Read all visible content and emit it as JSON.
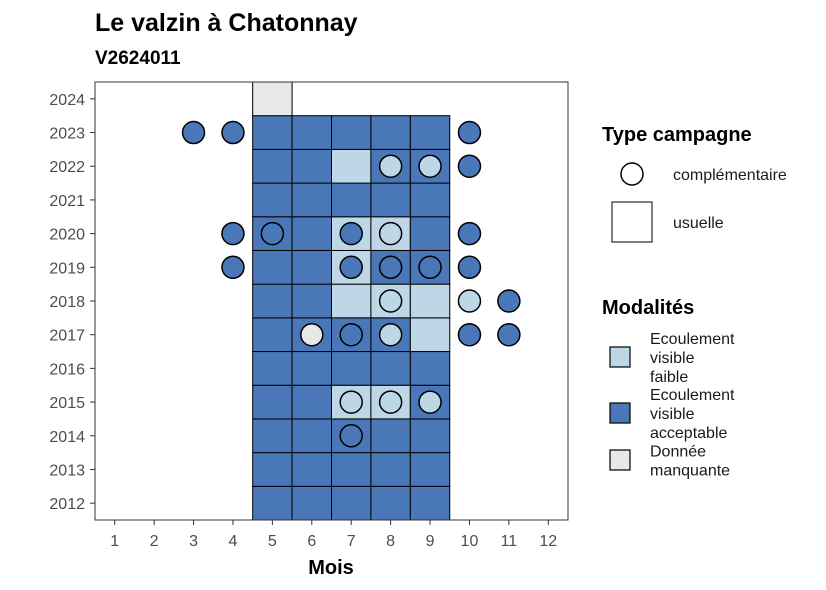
{
  "chart_data": {
    "type": "heatmap",
    "title": "Le valzin à Chatonnay",
    "subtitle": "V2624011",
    "xlabel": "Mois",
    "ylabel": "",
    "x_ticks": [
      1,
      2,
      3,
      4,
      5,
      6,
      7,
      8,
      9,
      10,
      11,
      12
    ],
    "y_ticks": [
      2012,
      2013,
      2014,
      2015,
      2016,
      2017,
      2018,
      2019,
      2020,
      2021,
      2022,
      2023,
      2024
    ],
    "xlim": [
      0.5,
      12.5
    ],
    "ylim": [
      2011.5,
      2024.5
    ],
    "grid": false,
    "legend_position": "right",
    "colors": {
      "faible": "#bdd7e7",
      "acceptable": "#4a77b8",
      "manquante": "#e8e8e8",
      "outline": "#000000"
    },
    "legend": {
      "shape_title": "Type campagne",
      "shape_items": [
        {
          "shape": "circle",
          "label": "complémentaire"
        },
        {
          "shape": "square",
          "label": "usuelle"
        }
      ],
      "fill_title": "Modalités",
      "fill_items": [
        {
          "key": "faible",
          "lines": [
            "Ecoulement",
            "visible",
            "faible"
          ]
        },
        {
          "key": "acceptable",
          "lines": [
            "Ecoulement",
            "visible",
            "acceptable"
          ]
        },
        {
          "key": "manquante",
          "lines": [
            "Donnée",
            "manquante"
          ]
        }
      ]
    },
    "usuelle": [
      {
        "year": 2012,
        "month": 5,
        "m": "acceptable"
      },
      {
        "year": 2012,
        "month": 6,
        "m": "acceptable"
      },
      {
        "year": 2012,
        "month": 7,
        "m": "acceptable"
      },
      {
        "year": 2012,
        "month": 8,
        "m": "acceptable"
      },
      {
        "year": 2012,
        "month": 9,
        "m": "acceptable"
      },
      {
        "year": 2013,
        "month": 5,
        "m": "acceptable"
      },
      {
        "year": 2013,
        "month": 6,
        "m": "acceptable"
      },
      {
        "year": 2013,
        "month": 7,
        "m": "acceptable"
      },
      {
        "year": 2013,
        "month": 8,
        "m": "acceptable"
      },
      {
        "year": 2013,
        "month": 9,
        "m": "acceptable"
      },
      {
        "year": 2014,
        "month": 5,
        "m": "acceptable"
      },
      {
        "year": 2014,
        "month": 6,
        "m": "acceptable"
      },
      {
        "year": 2014,
        "month": 7,
        "m": "acceptable"
      },
      {
        "year": 2014,
        "month": 8,
        "m": "acceptable"
      },
      {
        "year": 2014,
        "month": 9,
        "m": "acceptable"
      },
      {
        "year": 2015,
        "month": 5,
        "m": "acceptable"
      },
      {
        "year": 2015,
        "month": 6,
        "m": "acceptable"
      },
      {
        "year": 2015,
        "month": 7,
        "m": "faible"
      },
      {
        "year": 2015,
        "month": 8,
        "m": "faible"
      },
      {
        "year": 2015,
        "month": 9,
        "m": "acceptable"
      },
      {
        "year": 2016,
        "month": 5,
        "m": "acceptable"
      },
      {
        "year": 2016,
        "month": 6,
        "m": "acceptable"
      },
      {
        "year": 2016,
        "month": 7,
        "m": "acceptable"
      },
      {
        "year": 2016,
        "month": 8,
        "m": "acceptable"
      },
      {
        "year": 2016,
        "month": 9,
        "m": "acceptable"
      },
      {
        "year": 2017,
        "month": 5,
        "m": "acceptable"
      },
      {
        "year": 2017,
        "month": 6,
        "m": "acceptable"
      },
      {
        "year": 2017,
        "month": 7,
        "m": "acceptable"
      },
      {
        "year": 2017,
        "month": 8,
        "m": "acceptable"
      },
      {
        "year": 2017,
        "month": 9,
        "m": "faible"
      },
      {
        "year": 2018,
        "month": 5,
        "m": "acceptable"
      },
      {
        "year": 2018,
        "month": 6,
        "m": "acceptable"
      },
      {
        "year": 2018,
        "month": 7,
        "m": "faible"
      },
      {
        "year": 2018,
        "month": 8,
        "m": "faible"
      },
      {
        "year": 2018,
        "month": 9,
        "m": "faible"
      },
      {
        "year": 2019,
        "month": 5,
        "m": "acceptable"
      },
      {
        "year": 2019,
        "month": 6,
        "m": "acceptable"
      },
      {
        "year": 2019,
        "month": 7,
        "m": "faible"
      },
      {
        "year": 2019,
        "month": 8,
        "m": "acceptable"
      },
      {
        "year": 2019,
        "month": 9,
        "m": "acceptable"
      },
      {
        "year": 2020,
        "month": 5,
        "m": "acceptable"
      },
      {
        "year": 2020,
        "month": 6,
        "m": "acceptable"
      },
      {
        "year": 2020,
        "month": 7,
        "m": "faible"
      },
      {
        "year": 2020,
        "month": 8,
        "m": "faible"
      },
      {
        "year": 2020,
        "month": 9,
        "m": "acceptable"
      },
      {
        "year": 2021,
        "month": 5,
        "m": "acceptable"
      },
      {
        "year": 2021,
        "month": 6,
        "m": "acceptable"
      },
      {
        "year": 2021,
        "month": 7,
        "m": "acceptable"
      },
      {
        "year": 2021,
        "month": 8,
        "m": "acceptable"
      },
      {
        "year": 2021,
        "month": 9,
        "m": "acceptable"
      },
      {
        "year": 2022,
        "month": 5,
        "m": "acceptable"
      },
      {
        "year": 2022,
        "month": 6,
        "m": "acceptable"
      },
      {
        "year": 2022,
        "month": 7,
        "m": "faible"
      },
      {
        "year": 2022,
        "month": 8,
        "m": "acceptable"
      },
      {
        "year": 2022,
        "month": 9,
        "m": "acceptable"
      },
      {
        "year": 2023,
        "month": 5,
        "m": "acceptable"
      },
      {
        "year": 2023,
        "month": 6,
        "m": "acceptable"
      },
      {
        "year": 2023,
        "month": 7,
        "m": "acceptable"
      },
      {
        "year": 2023,
        "month": 8,
        "m": "acceptable"
      },
      {
        "year": 2023,
        "month": 9,
        "m": "acceptable"
      },
      {
        "year": 2024,
        "month": 5,
        "m": "manquante"
      }
    ],
    "complementaire": [
      {
        "year": 2014,
        "month": 7,
        "m": "acceptable"
      },
      {
        "year": 2015,
        "month": 7,
        "m": "faible"
      },
      {
        "year": 2015,
        "month": 8,
        "m": "faible"
      },
      {
        "year": 2015,
        "month": 9,
        "m": "faible"
      },
      {
        "year": 2017,
        "month": 6,
        "m": "manquante"
      },
      {
        "year": 2017,
        "month": 7,
        "m": "acceptable"
      },
      {
        "year": 2017,
        "month": 8,
        "m": "faible"
      },
      {
        "year": 2017,
        "month": 10,
        "m": "acceptable"
      },
      {
        "year": 2017,
        "month": 11,
        "m": "acceptable"
      },
      {
        "year": 2018,
        "month": 8,
        "m": "faible"
      },
      {
        "year": 2018,
        "month": 10,
        "m": "faible"
      },
      {
        "year": 2018,
        "month": 11,
        "m": "acceptable"
      },
      {
        "year": 2019,
        "month": 4,
        "m": "acceptable"
      },
      {
        "year": 2019,
        "month": 7,
        "m": "acceptable"
      },
      {
        "year": 2019,
        "month": 8,
        "m": "acceptable"
      },
      {
        "year": 2019,
        "month": 9,
        "m": "acceptable"
      },
      {
        "year": 2019,
        "month": 10,
        "m": "acceptable"
      },
      {
        "year": 2020,
        "month": 4,
        "m": "acceptable"
      },
      {
        "year": 2020,
        "month": 5,
        "m": "acceptable"
      },
      {
        "year": 2020,
        "month": 7,
        "m": "acceptable"
      },
      {
        "year": 2020,
        "month": 8,
        "m": "faible"
      },
      {
        "year": 2020,
        "month": 10,
        "m": "acceptable"
      },
      {
        "year": 2022,
        "month": 8,
        "m": "faible"
      },
      {
        "year": 2022,
        "month": 9,
        "m": "faible"
      },
      {
        "year": 2022,
        "month": 10,
        "m": "acceptable"
      },
      {
        "year": 2023,
        "month": 3,
        "m": "acceptable"
      },
      {
        "year": 2023,
        "month": 4,
        "m": "acceptable"
      },
      {
        "year": 2023,
        "month": 10,
        "m": "acceptable"
      }
    ]
  }
}
